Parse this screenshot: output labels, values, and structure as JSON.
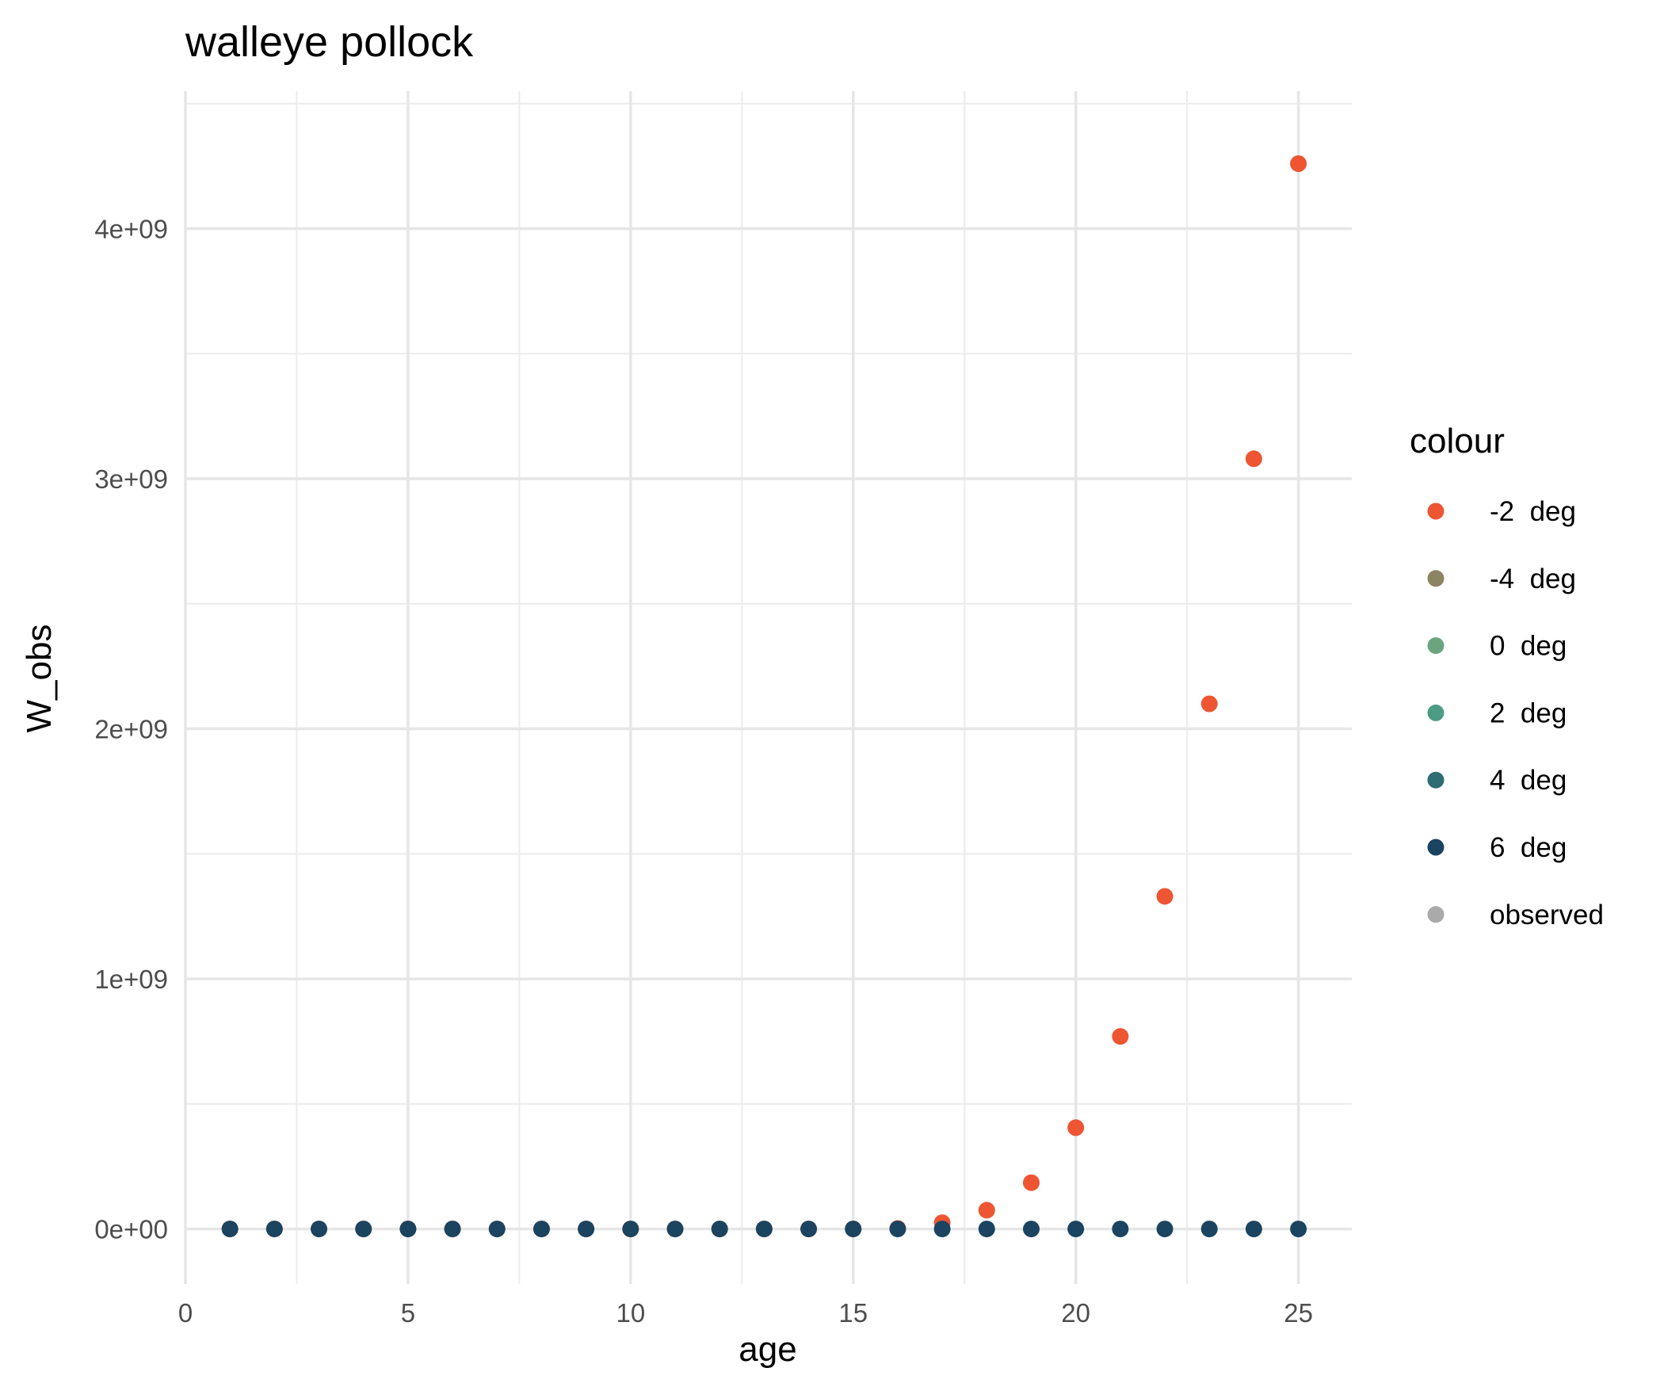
{
  "chart_data": {
    "type": "scatter",
    "title": "walleye pollock",
    "xlabel": "age",
    "ylabel": "W_obs",
    "xlim": [
      0,
      26.2
    ],
    "ylim": [
      -220000000,
      4550000000
    ],
    "x_ticks": [
      0,
      5,
      10,
      15,
      20,
      25
    ],
    "x_tick_labels": [
      "0",
      "5",
      "10",
      "15",
      "20",
      "25"
    ],
    "y_ticks": [
      0,
      1000000000,
      2000000000,
      3000000000,
      4000000000
    ],
    "y_tick_labels": [
      "0e+00",
      "1e+09",
      "2e+09",
      "3e+09",
      "4e+09"
    ],
    "grid": true,
    "legend": {
      "title": "colour",
      "position": "right",
      "entries": [
        {
          "label": "-2  deg",
          "color": "#EE5533"
        },
        {
          "label": "-4  deg",
          "color": "#8C8563"
        },
        {
          "label": "0  deg",
          "color": "#6BA57F"
        },
        {
          "label": "2  deg",
          "color": "#4C9C85"
        },
        {
          "label": "4  deg",
          "color": "#2E6D72"
        },
        {
          "label": "6  deg",
          "color": "#1B4460"
        },
        {
          "label": "observed",
          "color": "#AAAAAA"
        }
      ]
    },
    "series": [
      {
        "name": "-2  deg",
        "color": "#EE5533",
        "x": [
          1,
          2,
          3,
          4,
          5,
          6,
          7,
          8,
          9,
          10,
          11,
          12,
          13,
          14,
          15,
          16,
          17,
          18,
          19,
          20,
          21,
          22,
          23,
          24,
          25
        ],
        "y": [
          0,
          0,
          0,
          0,
          0,
          0,
          0,
          0,
          0,
          0,
          0,
          0,
          0,
          0,
          0,
          2000000,
          25000000,
          75000000,
          185000000,
          405000000,
          770000000,
          1330000000,
          2100000000,
          3080000000,
          4260000000
        ]
      },
      {
        "name": "6  deg",
        "color": "#1B4460",
        "x": [
          1,
          2,
          3,
          4,
          5,
          6,
          7,
          8,
          9,
          10,
          11,
          12,
          13,
          14,
          15,
          16,
          17,
          18,
          19,
          20,
          21,
          22,
          23,
          24,
          25
        ],
        "y": [
          0,
          0,
          0,
          0,
          0,
          0,
          0,
          0,
          0,
          0,
          0,
          0,
          0,
          0,
          0,
          0,
          0,
          0,
          0,
          0,
          0,
          0,
          0,
          0,
          0
        ]
      }
    ]
  }
}
